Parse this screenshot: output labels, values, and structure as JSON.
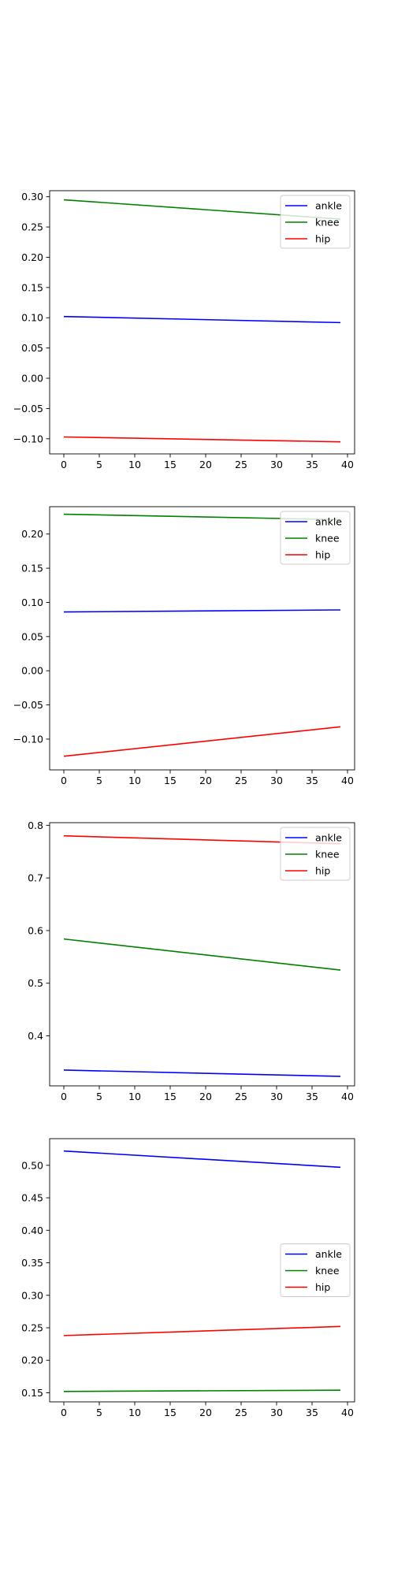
{
  "colors": {
    "ankle": "#0000ff",
    "knee": "#008000",
    "hip": "#ff0000",
    "axis": "#000000"
  },
  "chart_data": [
    {
      "type": "line",
      "x": [
        0,
        39
      ],
      "xlim": [
        -2,
        41
      ],
      "ylim": [
        -0.125,
        0.31
      ],
      "xticks": [
        0,
        5,
        10,
        15,
        20,
        25,
        30,
        35,
        40
      ],
      "xtick_labels": [
        "0",
        "5",
        "10",
        "15",
        "20",
        "25",
        "30",
        "35",
        "40"
      ],
      "yticks": [
        -0.1,
        -0.05,
        0.0,
        0.05,
        0.1,
        0.15,
        0.2,
        0.25,
        0.3
      ],
      "ytick_labels": [
        "−0.10",
        "−0.05",
        "0.00",
        "0.05",
        "0.10",
        "0.15",
        "0.20",
        "0.25",
        "0.30"
      ],
      "legend_position": "top-right",
      "grid": false,
      "series": [
        {
          "name": "ankle",
          "color": "#0000ff",
          "values": [
            0.102,
            0.092
          ]
        },
        {
          "name": "knee",
          "color": "#008000",
          "values": [
            0.295,
            0.263
          ]
        },
        {
          "name": "hip",
          "color": "#ff0000",
          "values": [
            -0.097,
            -0.105
          ]
        }
      ]
    },
    {
      "type": "line",
      "x": [
        0,
        39
      ],
      "xlim": [
        -2,
        41
      ],
      "ylim": [
        -0.145,
        0.24
      ],
      "xticks": [
        0,
        5,
        10,
        15,
        20,
        25,
        30,
        35,
        40
      ],
      "xtick_labels": [
        "0",
        "5",
        "10",
        "15",
        "20",
        "25",
        "30",
        "35",
        "40"
      ],
      "yticks": [
        -0.1,
        -0.05,
        0.0,
        0.05,
        0.1,
        0.15,
        0.2
      ],
      "ytick_labels": [
        "−0.10",
        "−0.05",
        "0.00",
        "0.05",
        "0.10",
        "0.15",
        "0.20"
      ],
      "legend_position": "top-right",
      "grid": false,
      "series": [
        {
          "name": "ankle",
          "color": "#0000ff",
          "values": [
            0.086,
            0.089
          ]
        },
        {
          "name": "knee",
          "color": "#008000",
          "values": [
            0.229,
            0.221
          ]
        },
        {
          "name": "hip",
          "color": "#ff0000",
          "values": [
            -0.125,
            -0.082
          ]
        }
      ]
    },
    {
      "type": "line",
      "x": [
        0,
        39
      ],
      "xlim": [
        -2,
        41
      ],
      "ylim": [
        0.305,
        0.805
      ],
      "xticks": [
        0,
        5,
        10,
        15,
        20,
        25,
        30,
        35,
        40
      ],
      "xtick_labels": [
        "0",
        "5",
        "10",
        "15",
        "20",
        "25",
        "30",
        "35",
        "40"
      ],
      "yticks": [
        0.4,
        0.5,
        0.6,
        0.7,
        0.8
      ],
      "ytick_labels": [
        "0.4",
        "0.5",
        "0.6",
        "0.7",
        "0.8"
      ],
      "legend_position": "top-right",
      "grid": false,
      "series": [
        {
          "name": "ankle",
          "color": "#0000ff",
          "values": [
            0.335,
            0.323
          ]
        },
        {
          "name": "knee",
          "color": "#008000",
          "values": [
            0.584,
            0.525
          ]
        },
        {
          "name": "hip",
          "color": "#ff0000",
          "values": [
            0.78,
            0.765
          ]
        }
      ]
    },
    {
      "type": "line",
      "x": [
        0,
        39
      ],
      "xlim": [
        -2,
        41
      ],
      "ylim": [
        0.136,
        0.541
      ],
      "xticks": [
        0,
        5,
        10,
        15,
        20,
        25,
        30,
        35,
        40
      ],
      "xtick_labels": [
        "0",
        "5",
        "10",
        "15",
        "20",
        "25",
        "30",
        "35",
        "40"
      ],
      "yticks": [
        0.15,
        0.2,
        0.25,
        0.3,
        0.35,
        0.4,
        0.45,
        0.5
      ],
      "ytick_labels": [
        "0.15",
        "0.20",
        "0.25",
        "0.30",
        "0.35",
        "0.40",
        "0.45",
        "0.50"
      ],
      "legend_position": "center-right",
      "grid": false,
      "series": [
        {
          "name": "ankle",
          "color": "#0000ff",
          "values": [
            0.522,
            0.497
          ]
        },
        {
          "name": "knee",
          "color": "#008000",
          "values": [
            0.152,
            0.154
          ]
        },
        {
          "name": "hip",
          "color": "#ff0000",
          "values": [
            0.238,
            0.252
          ]
        }
      ]
    }
  ]
}
